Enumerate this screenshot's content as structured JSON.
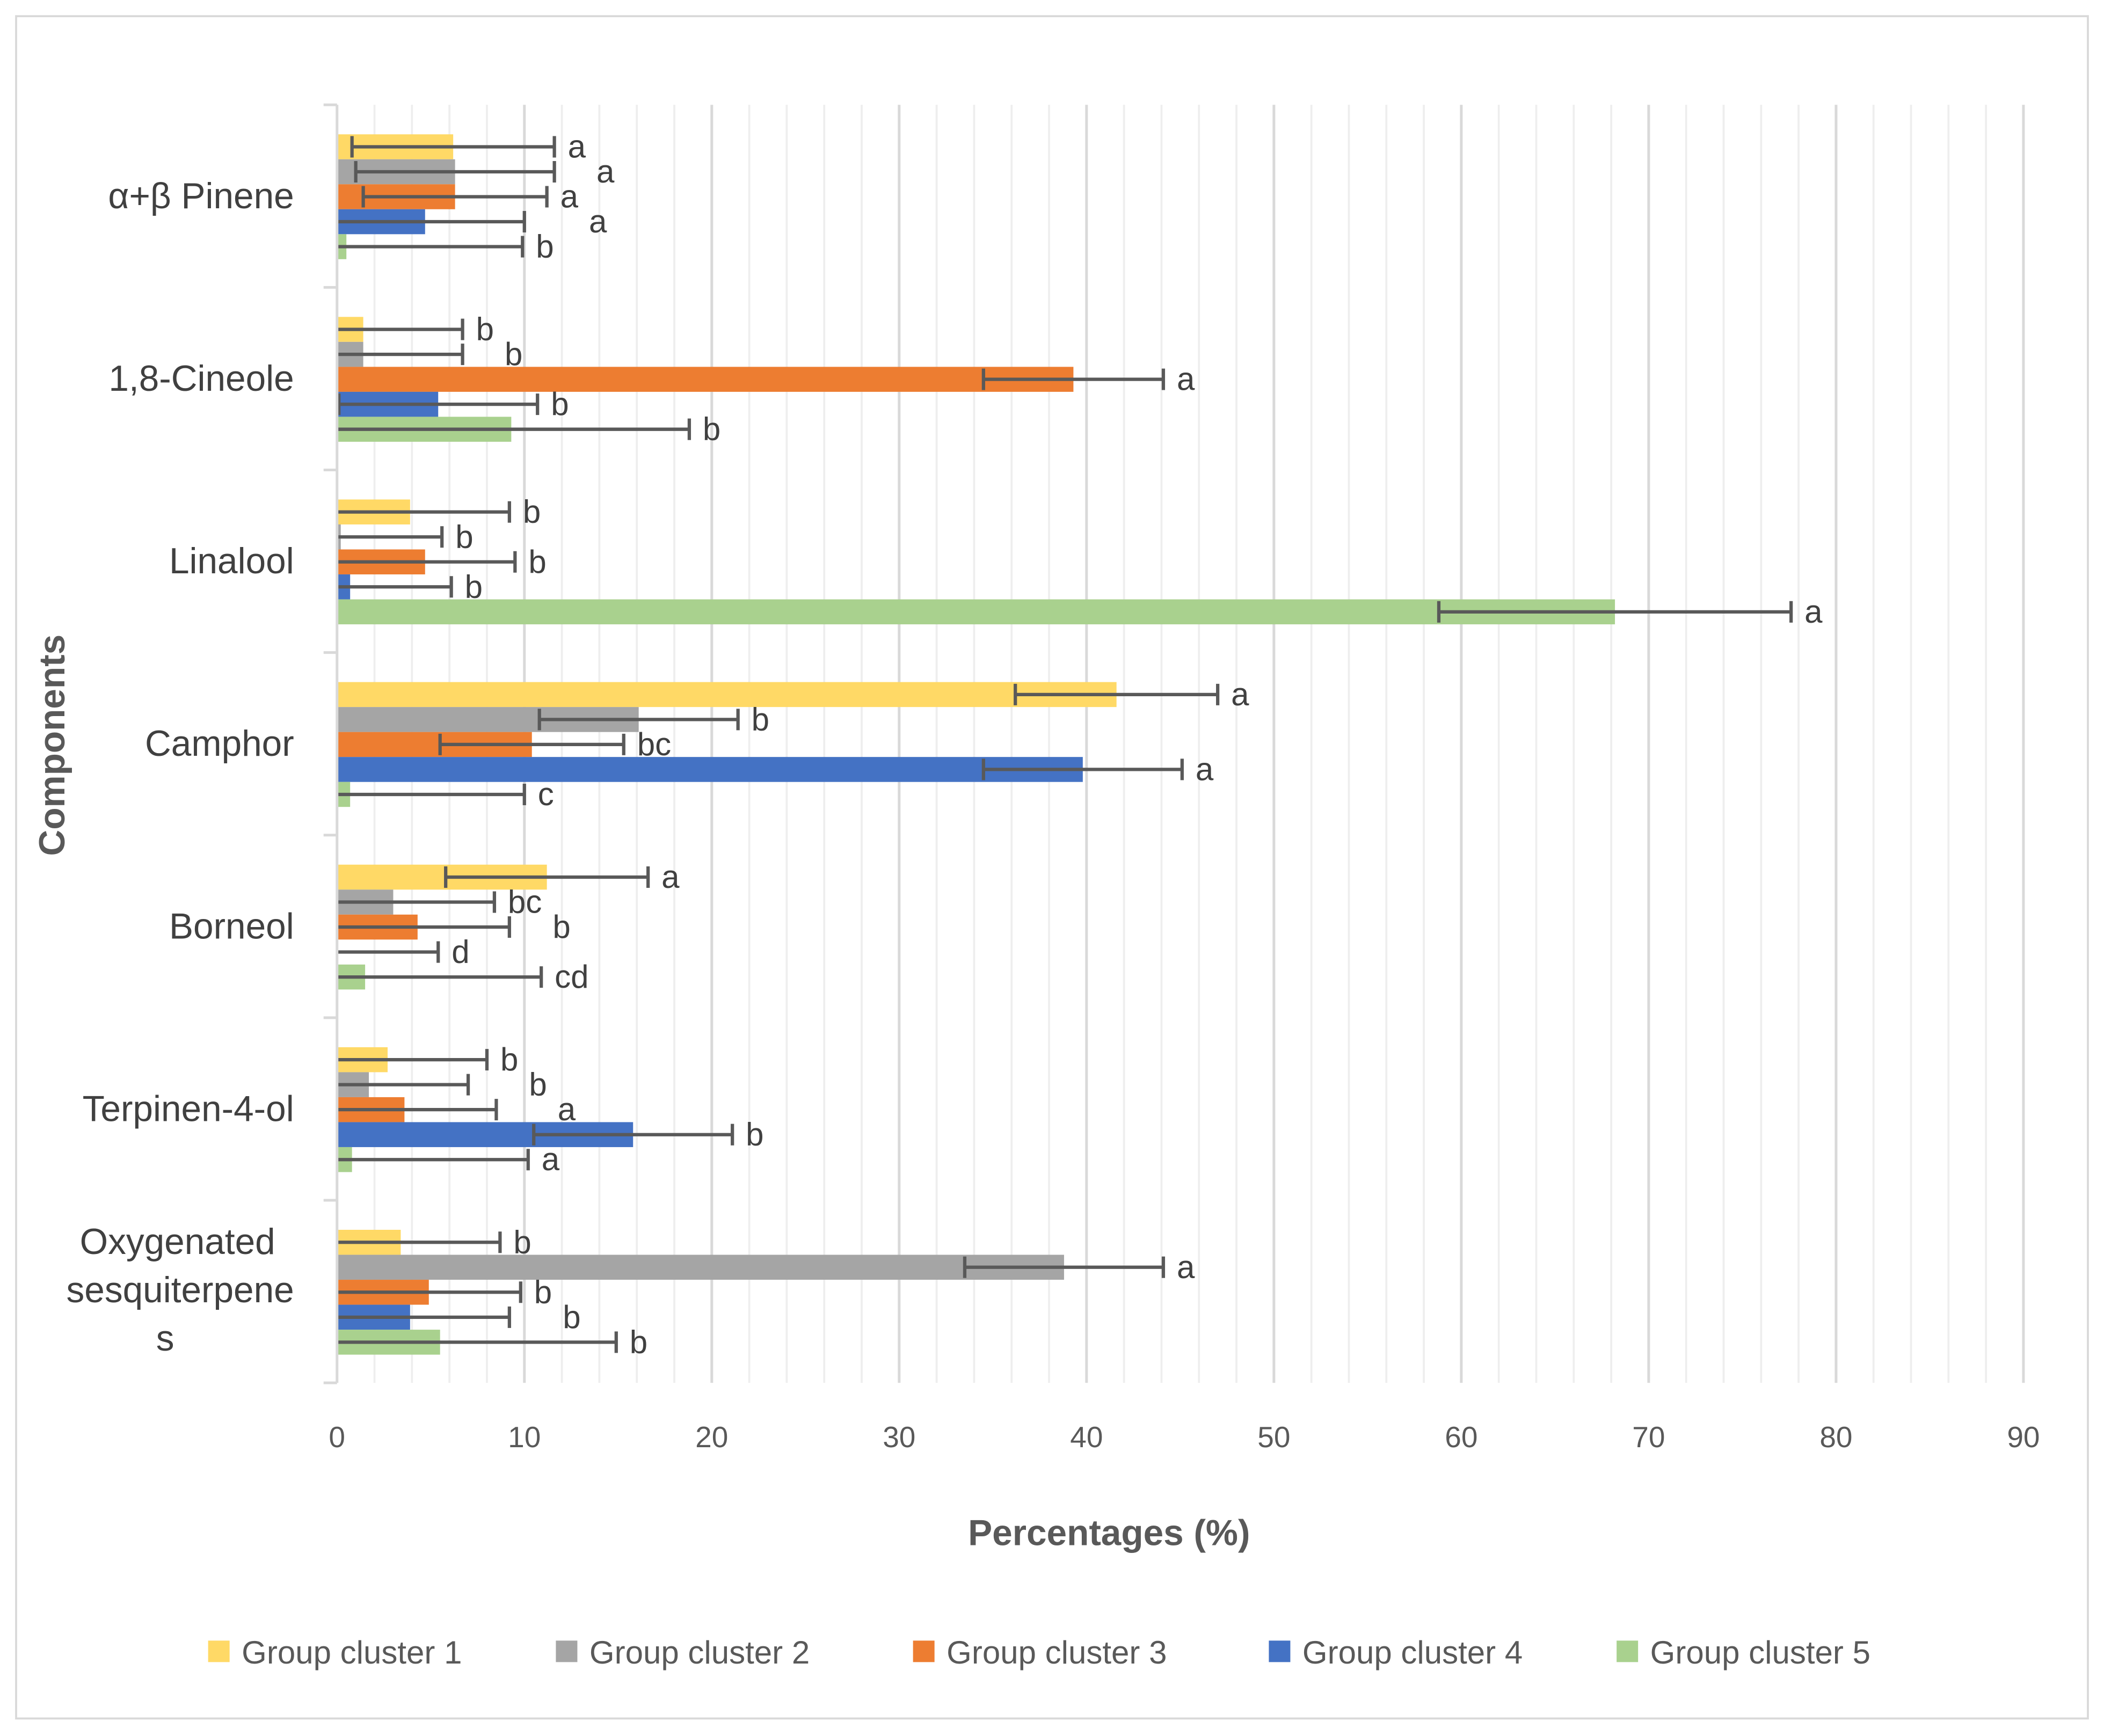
{
  "chart_data": {
    "type": "bar",
    "orientation": "horizontal",
    "title": "",
    "xlabel": "Percentages (%)",
    "ylabel": "Components",
    "xlim": [
      0,
      90
    ],
    "xticks": [
      0,
      10,
      20,
      30,
      40,
      50,
      60,
      70,
      80,
      90
    ],
    "grid": true,
    "legend_position": "bottom",
    "categories": [
      "α+β Pinene",
      "1,8-Cineole",
      "Linalool",
      "Camphor",
      "Borneol",
      "Terpinen-4-ol",
      "Oxygenated sesquiterpenes"
    ],
    "series": [
      {
        "name": "Group cluster 1",
        "color": "#FFD966",
        "values": [
          6.2,
          1.4,
          3.9,
          41.6,
          11.2,
          2.7,
          3.4
        ],
        "errors": [
          5.4,
          5.3,
          5.3,
          5.4,
          5.4,
          5.3,
          5.3
        ],
        "letters": [
          "a",
          "b",
          "b",
          "a",
          "a",
          "b",
          "b"
        ]
      },
      {
        "name": "Group cluster 2",
        "color": "#A5A5A5",
        "values": [
          6.3,
          1.4,
          0.2,
          16.1,
          3.0,
          1.7,
          38.8
        ],
        "errors": [
          5.3,
          5.3,
          5.4,
          5.3,
          5.4,
          5.3,
          5.3
        ],
        "letters": [
          "a",
          "b",
          "b",
          "b",
          "bc",
          "b",
          "a"
        ]
      },
      {
        "name": "Group cluster 3",
        "color": "#ED7D31",
        "values": [
          6.3,
          39.3,
          4.7,
          10.4,
          4.3,
          3.6,
          4.9
        ],
        "errors": [
          4.9,
          4.8,
          4.8,
          4.9,
          4.9,
          4.9,
          4.9
        ],
        "letters": [
          "a",
          "a",
          "b",
          "bc",
          "b",
          "a",
          "b"
        ]
      },
      {
        "name": "Group cluster 4",
        "color": "#4472C4",
        "values": [
          4.7,
          5.4,
          0.7,
          39.8,
          0.0,
          15.8,
          3.9
        ],
        "errors": [
          5.3,
          5.3,
          5.4,
          5.3,
          5.4,
          5.3,
          5.3
        ],
        "letters": [
          "a",
          "b",
          "b",
          "a",
          "d",
          "b",
          "b"
        ]
      },
      {
        "name": "Group cluster 5",
        "color": "#A9D18E",
        "values": [
          0.5,
          9.3,
          68.2,
          0.7,
          1.5,
          0.8,
          5.5
        ],
        "errors": [
          9.4,
          9.5,
          9.4,
          9.3,
          9.4,
          9.4,
          9.4
        ],
        "letters": [
          "b",
          "b",
          "a",
          "c",
          "cd",
          "a",
          "b"
        ]
      }
    ]
  }
}
